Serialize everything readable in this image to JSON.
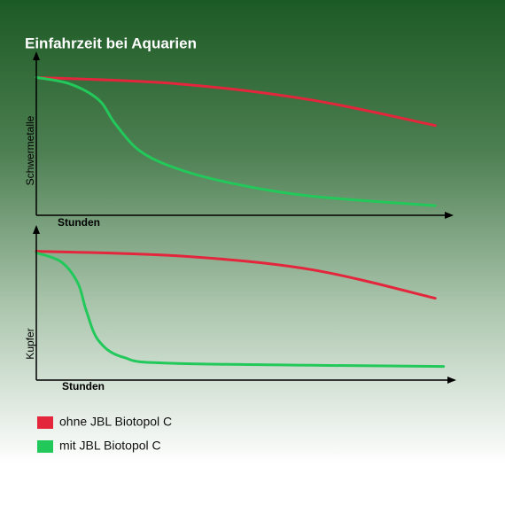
{
  "title": "Einfahrzeit bei Aquarien",
  "chart_data": [
    {
      "type": "line",
      "ylabel": "Schwermetalle",
      "xlabel": "Stunden",
      "xlim": [
        0,
        100
      ],
      "ylim": [
        0,
        100
      ],
      "series": [
        {
          "name": "ohne JBL Biotopol C",
          "color": "#e3263c",
          "x": [
            0,
            34,
            66,
            96
          ],
          "values": [
            86,
            82,
            72,
            56
          ]
        },
        {
          "name": "mit JBL Biotopol C",
          "color": "#22c95a",
          "x": [
            0,
            8,
            15,
            19,
            25,
            34,
            47,
            66,
            96
          ],
          "values": [
            86,
            82,
            72,
            57,
            40,
            29,
            20,
            12,
            6
          ]
        }
      ]
    },
    {
      "type": "line",
      "ylabel": "Kupfer",
      "xlabel": "Stunden",
      "xlim": [
        0,
        100
      ],
      "ylim": [
        0,
        100
      ],
      "series": [
        {
          "color": "#e3263c",
          "x": [
            0,
            34,
            66,
            96
          ],
          "values": [
            85,
            82,
            73,
            54
          ]
        },
        {
          "color": "#22c95a",
          "x": [
            0,
            6,
            10,
            12,
            15,
            21,
            34,
            98
          ],
          "values": [
            84,
            78,
            64,
            46,
            26,
            15,
            11,
            9
          ]
        }
      ]
    }
  ]
}
